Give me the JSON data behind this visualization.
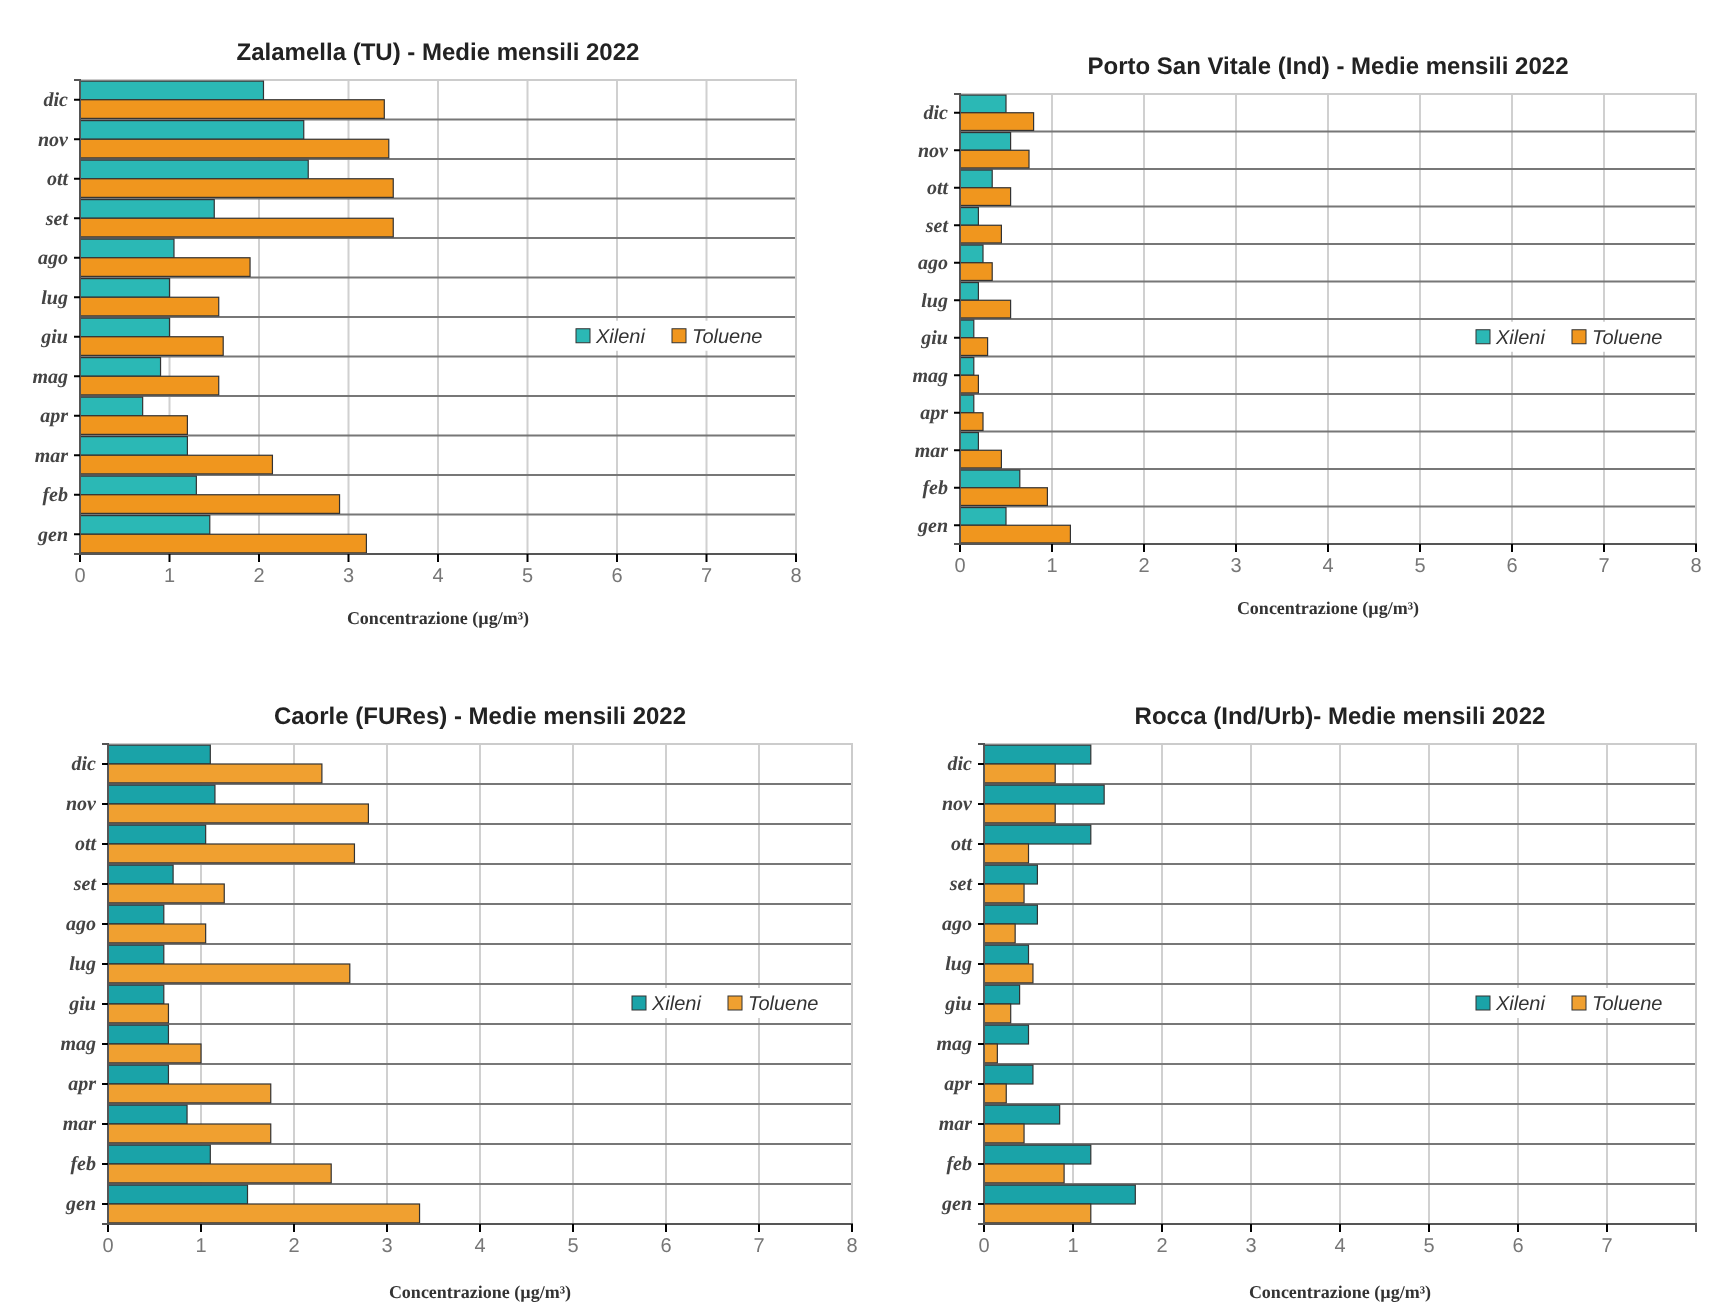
{
  "chart_data": [
    {
      "type": "bar",
      "orientation": "horizontal",
      "title": "Zalamella (TU) - Medie mensili 2022",
      "xlabel": "Concentrazione (µg/m³)",
      "categories": [
        "dic",
        "nov",
        "ott",
        "set",
        "ago",
        "lug",
        "giu",
        "mag",
        "apr",
        "mar",
        "feb",
        "gen"
      ],
      "series": [
        {
          "name": "Xileni",
          "color": "#2bb8b5",
          "values": [
            2.05,
            2.5,
            2.55,
            1.5,
            1.05,
            1.0,
            1.0,
            0.9,
            0.7,
            1.2,
            1.3,
            1.45
          ]
        },
        {
          "name": "Toluene",
          "color": "#f0961e",
          "values": [
            3.4,
            3.45,
            3.5,
            3.5,
            1.9,
            1.55,
            1.6,
            1.55,
            1.2,
            2.15,
            2.9,
            3.2
          ]
        }
      ],
      "xlim": [
        0,
        8
      ],
      "xticks": [
        0,
        1,
        2,
        3,
        4,
        5,
        6,
        7,
        8
      ],
      "grid": true,
      "legend": "right"
    },
    {
      "type": "bar",
      "orientation": "horizontal",
      "title": "Porto San Vitale (Ind) - Medie mensili 2022",
      "xlabel": "Concentrazione (µg/m³)",
      "categories": [
        "dic",
        "nov",
        "ott",
        "set",
        "ago",
        "lug",
        "giu",
        "mag",
        "apr",
        "mar",
        "feb",
        "gen"
      ],
      "series": [
        {
          "name": "Xileni",
          "color": "#2bb8b5",
          "values": [
            0.5,
            0.55,
            0.35,
            0.2,
            0.25,
            0.2,
            0.15,
            0.15,
            0.15,
            0.2,
            0.65,
            0.5
          ]
        },
        {
          "name": "Toluene",
          "color": "#f0961e",
          "values": [
            0.8,
            0.75,
            0.55,
            0.45,
            0.35,
            0.55,
            0.3,
            0.2,
            0.25,
            0.45,
            0.95,
            1.2
          ]
        }
      ],
      "xlim": [
        0,
        8
      ],
      "xticks": [
        0,
        1,
        2,
        3,
        4,
        5,
        6,
        7,
        8
      ],
      "grid": true,
      "legend": "right"
    },
    {
      "type": "bar",
      "orientation": "horizontal",
      "title": "Caorle (FURes) - Medie mensili 2022",
      "xlabel": "Concentrazione (µg/m³)",
      "categories": [
        "dic",
        "nov",
        "ott",
        "set",
        "ago",
        "lug",
        "giu",
        "mag",
        "apr",
        "mar",
        "feb",
        "gen"
      ],
      "series": [
        {
          "name": "Xileni",
          "color": "#1aa3a8",
          "values": [
            1.1,
            1.15,
            1.05,
            0.7,
            0.6,
            0.6,
            0.6,
            0.65,
            0.65,
            0.85,
            1.1,
            1.5
          ]
        },
        {
          "name": "Toluene",
          "color": "#f0a030",
          "values": [
            2.3,
            2.8,
            2.65,
            1.25,
            1.05,
            2.6,
            0.65,
            1.0,
            1.75,
            1.75,
            2.4,
            3.35
          ]
        }
      ],
      "xlim": [
        0,
        8
      ],
      "xticks": [
        0,
        1,
        2,
        3,
        4,
        5,
        6,
        7,
        8
      ],
      "grid": true,
      "legend": "right"
    },
    {
      "type": "bar",
      "orientation": "horizontal",
      "title": "Rocca (Ind/Urb)- Medie mensili 2022",
      "xlabel": "Concentrazione (µg/m³)",
      "categories": [
        "dic",
        "nov",
        "ott",
        "set",
        "ago",
        "lug",
        "giu",
        "mag",
        "apr",
        "mar",
        "feb",
        "gen"
      ],
      "series": [
        {
          "name": "Xileni",
          "color": "#1aa3a8",
          "values": [
            1.2,
            1.35,
            1.2,
            0.6,
            0.6,
            0.5,
            0.4,
            0.5,
            0.55,
            0.85,
            1.2,
            1.7
          ]
        },
        {
          "name": "Toluene",
          "color": "#f0a030",
          "values": [
            0.8,
            0.8,
            0.5,
            0.45,
            0.35,
            0.55,
            0.3,
            0.15,
            0.25,
            0.45,
            0.9,
            1.2
          ]
        }
      ],
      "xlim": [
        0,
        8
      ],
      "xticks": [
        0,
        1,
        2,
        3,
        4,
        5,
        6,
        7
      ],
      "grid": true,
      "legend": "right"
    }
  ]
}
